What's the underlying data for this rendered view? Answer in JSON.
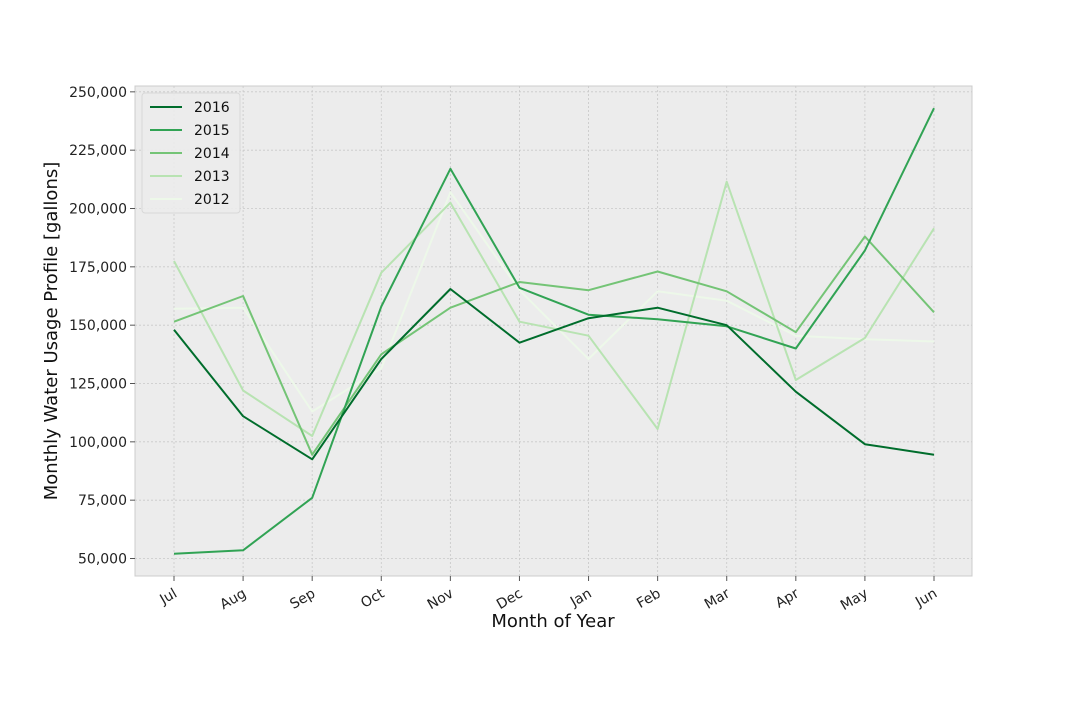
{
  "chart_data": {
    "type": "line",
    "title": "",
    "xlabel": "Month of Year",
    "ylabel": "Monthly Water Usage Profile [gallons]",
    "categories": [
      "Jul",
      "Aug",
      "Sep",
      "Oct",
      "Nov",
      "Dec",
      "Jan",
      "Feb",
      "Mar",
      "Apr",
      "May",
      "Jun"
    ],
    "ylim": [
      42500,
      252500
    ],
    "yticks": [
      50000,
      75000,
      100000,
      125000,
      150000,
      175000,
      200000,
      225000,
      250000
    ],
    "ytick_labels": [
      "50,000",
      "75,000",
      "100,000",
      "125,000",
      "150,000",
      "175,000",
      "200,000",
      "225,000",
      "250,000"
    ],
    "grid": true,
    "legend": "top-left",
    "series": [
      {
        "name": "2016",
        "color": "#006d2c",
        "values": [
          148000,
          111000,
          92500,
          135500,
          165500,
          142500,
          153000,
          157500,
          150000,
          121500,
          99000,
          94500
        ]
      },
      {
        "name": "2015",
        "color": "#31a354",
        "values": [
          52000,
          53500,
          76000,
          158000,
          217000,
          166000,
          154500,
          152500,
          149500,
          140000,
          182000,
          243000
        ]
      },
      {
        "name": "2014",
        "color": "#74c476",
        "values": [
          151500,
          162500,
          94500,
          137500,
          157500,
          168500,
          165000,
          173000,
          164500,
          147000,
          188000,
          155500
        ]
      },
      {
        "name": "2013",
        "color": "#b8e3b2",
        "values": [
          177500,
          122000,
          102500,
          172500,
          202500,
          151500,
          145500,
          105500,
          211500,
          126500,
          144500,
          191500
        ]
      },
      {
        "name": "2012",
        "color": "#edf8e9",
        "values": [
          157000,
          157500,
          113000,
          131500,
          207000,
          165000,
          135500,
          164500,
          160500,
          145500,
          144000,
          143000
        ]
      }
    ]
  }
}
